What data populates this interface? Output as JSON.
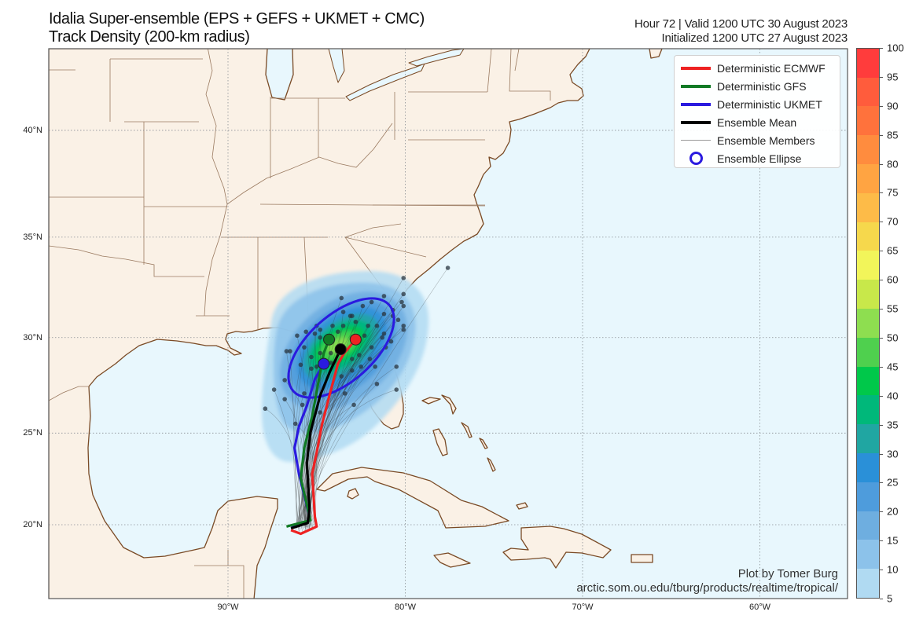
{
  "title": {
    "line1": "Idalia Super-ensemble (EPS + GEFS + UKMET + CMC)",
    "line2": "Track Density (200-km radius)"
  },
  "valid_info": {
    "line1": "Hour 72 | Valid 1200 UTC 30 August 2023",
    "line2": "Initialized 1200 UTC 27 August 2023"
  },
  "credit": {
    "author": "Plot by Tomer Burg",
    "url": "arctic.som.ou.edu/tburg/products/realtime/tropical/"
  },
  "legend": [
    {
      "label": "Deterministic ECMWF",
      "color": "#ee2222",
      "symbol": "line"
    },
    {
      "label": "Deterministic GFS",
      "color": "#117a25",
      "symbol": "line"
    },
    {
      "label": "Deterministic UKMET",
      "color": "#2a1adf",
      "symbol": "line"
    },
    {
      "label": "Ensemble Mean",
      "color": "#000000",
      "symbol": "line"
    },
    {
      "label": "Ensemble Members",
      "color": "#888888",
      "symbol": "thin-line"
    },
    {
      "label": "Ensemble Ellipse",
      "color": "#2a1adf",
      "symbol": "circle"
    }
  ],
  "axes": {
    "lat_labels": [
      {
        "lat": 20,
        "label": "20°N"
      },
      {
        "lat": 25,
        "label": "25°N"
      },
      {
        "lat": 30,
        "label": "30°N"
      },
      {
        "lat": 35,
        "label": "35°N"
      },
      {
        "lat": 40,
        "label": "40°N"
      }
    ],
    "lon_labels": [
      {
        "lon": -90,
        "label": "90°W"
      },
      {
        "lon": -80,
        "label": "80°W"
      },
      {
        "lon": -70,
        "label": "70°W"
      },
      {
        "lon": -60,
        "label": "60°W"
      }
    ],
    "extent": {
      "lon": [
        -100,
        -55
      ],
      "lat": [
        16,
        44
      ]
    },
    "grid": true
  },
  "colorbar": {
    "levels": [
      5,
      10,
      15,
      20,
      25,
      30,
      35,
      40,
      45,
      50,
      55,
      60,
      65,
      70,
      75,
      80,
      85,
      90,
      95,
      100
    ],
    "colors": [
      "#b0daf2",
      "#8cc2ea",
      "#6eaee0",
      "#4e9cdc",
      "#2a90d8",
      "#20a6a2",
      "#00b87a",
      "#00c84a",
      "#4fd04e",
      "#8ede50",
      "#c8e84a",
      "#f2f55a",
      "#f6d84c",
      "#fdbb48",
      "#ffa442",
      "#ff8c3e",
      "#ff723c",
      "#ff5c3c",
      "#ff3c3c"
    ]
  },
  "colors": {
    "land": "#faf1e6",
    "ocean": "#e8f7fd",
    "coastline": "#7a4a25",
    "border": "#9a7a60"
  },
  "tracks": {
    "ecmwf": {
      "color": "#ee2222",
      "points": [
        [
          -86.45,
          19.7
        ],
        [
          -85.9,
          19.5
        ],
        [
          -85.0,
          19.9
        ],
        [
          -85.1,
          20.45
        ],
        [
          -85.25,
          22.8
        ],
        [
          -85.0,
          23.95
        ],
        [
          -84.7,
          25.45
        ],
        [
          -84.25,
          27.1
        ],
        [
          -83.8,
          28.65
        ],
        [
          -83.45,
          29.2
        ],
        [
          -82.8,
          29.9
        ]
      ]
    },
    "gfs": {
      "color": "#117a25",
      "points": [
        [
          -86.7,
          19.9
        ],
        [
          -85.35,
          20.25
        ],
        [
          -85.9,
          22.55
        ],
        [
          -85.7,
          24.2
        ],
        [
          -85.25,
          25.9
        ],
        [
          -84.9,
          27.7
        ],
        [
          -84.6,
          29.2
        ],
        [
          -84.3,
          29.9
        ]
      ]
    },
    "ukmet": {
      "color": "#2a1adf",
      "points": [
        [
          -86.45,
          19.9
        ],
        [
          -85.55,
          20.1
        ],
        [
          -85.4,
          20.45
        ],
        [
          -86.0,
          22.8
        ],
        [
          -86.25,
          24.2
        ],
        [
          -86.0,
          25.35
        ],
        [
          -85.55,
          26.45
        ],
        [
          -85.1,
          27.85
        ],
        [
          -84.6,
          28.65
        ]
      ]
    },
    "ensemble_mean": {
      "color": "#000000",
      "points": [
        [
          -86.45,
          19.8
        ],
        [
          -85.5,
          20.1
        ],
        [
          -85.4,
          20.9
        ],
        [
          -85.55,
          23.4
        ],
        [
          -85.35,
          25.05
        ],
        [
          -84.8,
          27.0
        ],
        [
          -84.25,
          28.25
        ],
        [
          -83.65,
          29.4
        ]
      ]
    }
  },
  "ensemble_member_endpoints": [
    [
      -83.6,
      32.0
    ],
    [
      -81.9,
      31.8
    ],
    [
      -80.2,
      31.8
    ],
    [
      -80.1,
      31.6
    ],
    [
      -81.2,
      32.1
    ],
    [
      -82.4,
      31.6
    ],
    [
      -83.5,
      31.3
    ],
    [
      -83.1,
      31.1
    ],
    [
      -83.0,
      31.1
    ],
    [
      -80.7,
      31.1
    ],
    [
      -80.4,
      30.9
    ],
    [
      -85.0,
      30.6
    ],
    [
      -84.1,
      30.6
    ],
    [
      -83.5,
      30.6
    ],
    [
      -82.8,
      30.8
    ],
    [
      -82.1,
      30.6
    ],
    [
      -81.6,
      30.6
    ],
    [
      -85.6,
      30.3
    ],
    [
      -84.8,
      30.4
    ],
    [
      -85.1,
      30.2
    ],
    [
      -83.8,
      30.3
    ],
    [
      -86.1,
      30.1
    ],
    [
      -81.2,
      30.2
    ],
    [
      -80.1,
      30.4
    ],
    [
      -84.8,
      30.0
    ],
    [
      -82.3,
      30.1
    ],
    [
      -81.3,
      30.0
    ],
    [
      -80.8,
      29.8
    ],
    [
      -85.7,
      29.5
    ],
    [
      -84.8,
      29.2
    ],
    [
      -86.7,
      29.3
    ],
    [
      -86.5,
      29.3
    ],
    [
      -84.2,
      29.2
    ],
    [
      -82.6,
      29.1
    ],
    [
      -81.9,
      29.5
    ],
    [
      -81.1,
      29.5
    ],
    [
      -85.3,
      29.0
    ],
    [
      -83.0,
      28.9
    ],
    [
      -85.9,
      28.6
    ],
    [
      -85.0,
      28.5
    ],
    [
      -84.2,
      28.7
    ],
    [
      -82.5,
      28.5
    ],
    [
      -82.0,
      28.9
    ],
    [
      -81.7,
      28.5
    ],
    [
      -80.5,
      28.5
    ],
    [
      -86.8,
      27.8
    ],
    [
      -85.3,
      28.4
    ],
    [
      -83.6,
      28.0
    ],
    [
      -83.0,
      28.3
    ],
    [
      -81.6,
      27.6
    ],
    [
      -87.4,
      27.3
    ],
    [
      -85.7,
      27.1
    ],
    [
      -83.4,
      27.1
    ],
    [
      -86.8,
      26.8
    ],
    [
      -85.8,
      26.5
    ],
    [
      -82.9,
      26.5
    ],
    [
      -87.9,
      26.3
    ],
    [
      -84.8,
      26.1
    ],
    [
      -86.2,
      25.5
    ],
    [
      -80.1,
      33.0
    ],
    [
      -77.6,
      33.5
    ],
    [
      -80.1,
      32.2
    ],
    [
      -81.2,
      31.2
    ],
    [
      -80.7,
      31.4
    ],
    [
      -80.1,
      30.6
    ],
    [
      -80.5,
      27.3
    ]
  ]
}
